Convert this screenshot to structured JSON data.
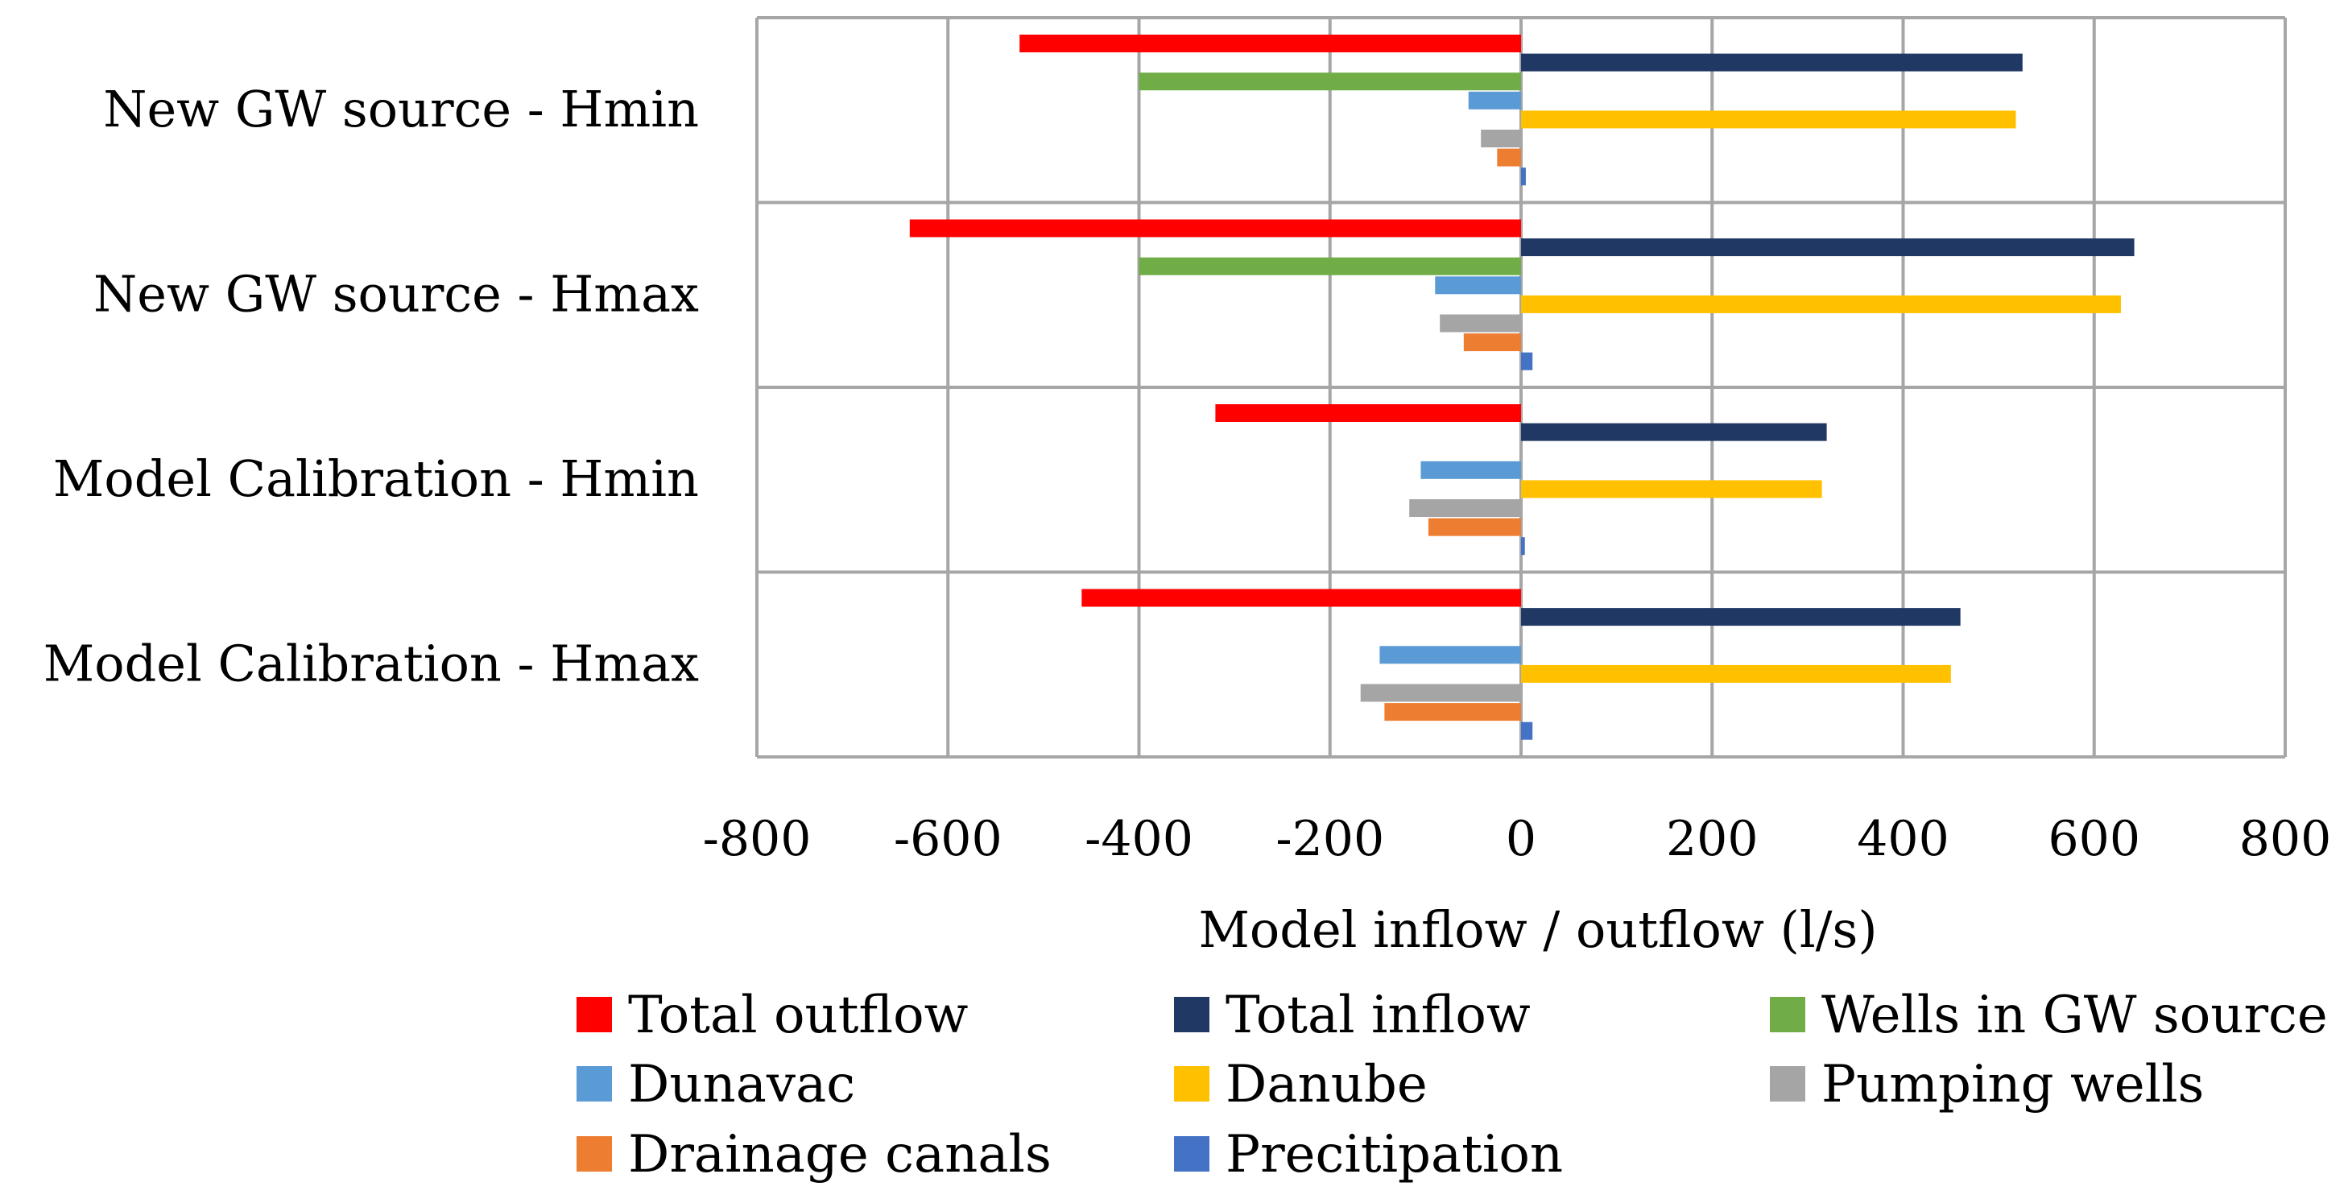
{
  "chart_data": {
    "type": "bar",
    "orientation": "horizontal",
    "categories": [
      "New GW source - Hmin",
      "New GW source - Hmax",
      "Model Calibration - Hmin",
      "Model Calibration - Hmax"
    ],
    "series": [
      {
        "name": "Total outflow",
        "color": "#FF0000",
        "values": [
          -525,
          -640,
          -320,
          -460
        ]
      },
      {
        "name": "Total inflow",
        "color": "#203864",
        "values": [
          525,
          642,
          320,
          460
        ]
      },
      {
        "name": "Wells in GW source",
        "color": "#70AD47",
        "values": [
          -400,
          -400,
          0,
          0
        ]
      },
      {
        "name": "Dunavac",
        "color": "#5B9BD5",
        "values": [
          -55,
          -90,
          -105,
          -148
        ]
      },
      {
        "name": "Danube",
        "color": "#FFC000",
        "values": [
          518,
          628,
          315,
          450
        ]
      },
      {
        "name": "Pumping wells",
        "color": "#A5A5A5",
        "values": [
          -42,
          -85,
          -117,
          -168
        ]
      },
      {
        "name": "Drainage canals",
        "color": "#ED7D31",
        "values": [
          -25,
          -60,
          -97,
          -143
        ]
      },
      {
        "name": "Precitipation",
        "color": "#4472C4",
        "values": [
          5,
          12,
          4,
          12
        ]
      }
    ],
    "xlabel": "Model inflow / outflow (l/s)",
    "ylabel": "",
    "xlim": [
      -800,
      800
    ],
    "xticks": [
      "-800",
      "-600",
      "-400",
      "-200",
      "0",
      "200",
      "400",
      "600",
      "800"
    ],
    "grid": true,
    "legend": {
      "position": "bottom",
      "columns": 3,
      "entries": [
        "Total outflow",
        "Total inflow",
        "Wells in GW source",
        "Dunavac",
        "Danube",
        "Pumping wells",
        "Drainage canals",
        "Precitipation"
      ]
    }
  }
}
